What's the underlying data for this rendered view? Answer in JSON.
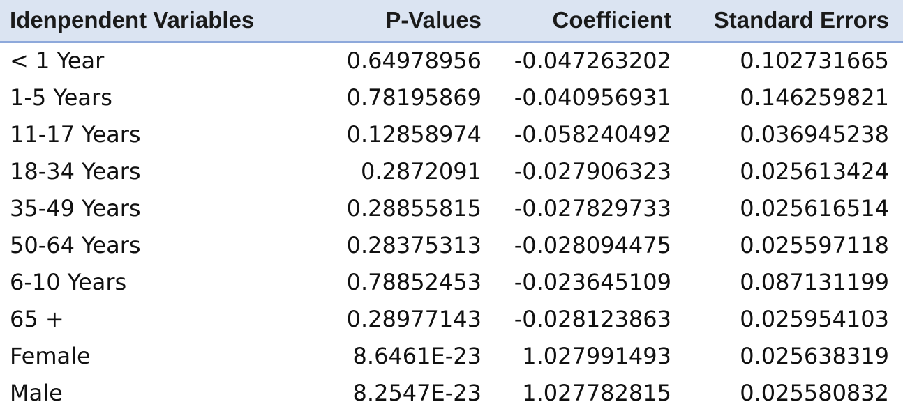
{
  "table": {
    "headers": [
      "Idenpendent Variables",
      "P-Values",
      "Coefficient",
      "Standard Errors"
    ],
    "rows": [
      [
        "< 1 Year",
        "0.64978956",
        "-0.047263202",
        "0.102731665"
      ],
      [
        "1-5 Years",
        "0.78195869",
        "-0.040956931",
        "0.146259821"
      ],
      [
        "11-17 Years",
        "0.12858974",
        "-0.058240492",
        "0.036945238"
      ],
      [
        "18-34 Years",
        "0.2872091",
        "-0.027906323",
        "0.025613424"
      ],
      [
        "35-49 Years",
        "0.28855815",
        "-0.027829733",
        "0.025616514"
      ],
      [
        "50-64 Years",
        "0.28375313",
        "-0.028094475",
        "0.025597118"
      ],
      [
        "6-10 Years",
        "0.78852453",
        "-0.023645109",
        "0.087131199"
      ],
      [
        "65 +",
        "0.28977143",
        "-0.028123863",
        "0.025954103"
      ],
      [
        "Female",
        "8.6461E-23",
        "1.027991493",
        "0.025638319"
      ],
      [
        "Male",
        "8.2547E-23",
        "1.027782815",
        "0.025580832"
      ]
    ]
  },
  "colors": {
    "header_background": "#dbe4f2",
    "header_border": "#8ea9db"
  }
}
